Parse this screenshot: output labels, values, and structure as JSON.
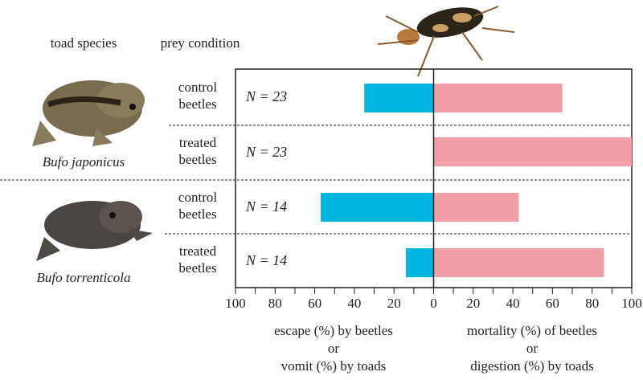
{
  "chart_data": {
    "type": "bar",
    "orientation": "horizontal-diverging",
    "column_headers": [
      "toad species",
      "prey condition"
    ],
    "species": [
      "Bufo japonicus",
      "Bufo torrenticola"
    ],
    "rows": [
      {
        "species": "Bufo japonicus",
        "condition": [
          "control",
          "beetles"
        ],
        "n_label": "N = 23",
        "left_value": 35,
        "right_value": 65
      },
      {
        "species": "Bufo japonicus",
        "condition": [
          "treated",
          "beetles"
        ],
        "n_label": "N = 23",
        "left_value": 0,
        "right_value": 100
      },
      {
        "species": "Bufo torrenticola",
        "condition": [
          "control",
          "beetles"
        ],
        "n_label": "N = 14",
        "left_value": 57,
        "right_value": 43
      },
      {
        "species": "Bufo torrenticola",
        "condition": [
          "treated",
          "beetles"
        ],
        "n_label": "N = 14",
        "left_value": 14,
        "right_value": 86
      }
    ],
    "left_axis": {
      "range": [
        100,
        0
      ],
      "ticks": [
        "100",
        "80",
        "60",
        "40",
        "20",
        "0"
      ],
      "label": [
        "escape (%) by beetles",
        "or",
        "vomit (%) by toads"
      ]
    },
    "right_axis": {
      "range": [
        0,
        100
      ],
      "ticks": [
        "20",
        "40",
        "60",
        "80",
        "100"
      ],
      "label": [
        "mortality (%) of beetles",
        "or",
        "digestion (%) by toads"
      ]
    },
    "colors": {
      "left": "#00b6de",
      "right": "#f09ea8"
    }
  }
}
